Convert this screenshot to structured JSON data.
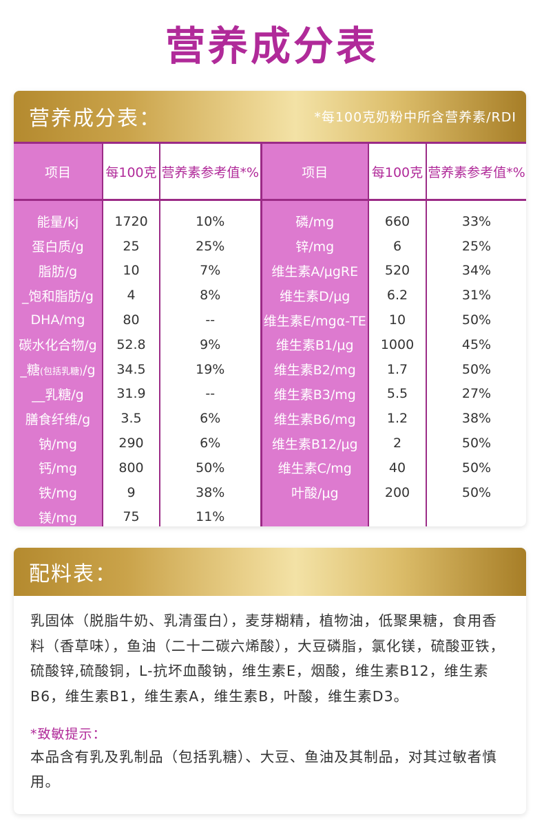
{
  "page_title": "营养成分表",
  "nutrition": {
    "header_title": "营养成分表：",
    "header_note": "*每100克奶粉中所含营养素/RDI",
    "columns": {
      "item": "项目",
      "per100g": "每100克",
      "rdi": "营养素参考值*%"
    },
    "left_rows": [
      {
        "item": "能量/kj",
        "value": "1720",
        "rdi": "10%"
      },
      {
        "item": "蛋白质/g",
        "value": "25",
        "rdi": "25%"
      },
      {
        "item": "脂肪/g",
        "value": "10",
        "rdi": "7%"
      },
      {
        "item": "_饱和脂肪/g",
        "value": "4",
        "rdi": "8%"
      },
      {
        "item": "DHA/mg",
        "value": "80",
        "rdi": "--"
      },
      {
        "item": "碳水化合物/g",
        "value": "52.8",
        "rdi": "9%"
      },
      {
        "item_prefix": "_糖",
        "item_small": "(包括乳糖)",
        "item_suffix": "/g",
        "value": "34.5",
        "rdi": "19%"
      },
      {
        "item": "__乳糖/g",
        "value": "31.9",
        "rdi": "--"
      },
      {
        "item": "膳食纤维/g",
        "value": "3.5",
        "rdi": "6%"
      },
      {
        "item": "钠/mg",
        "value": "290",
        "rdi": "6%"
      },
      {
        "item": "钙/mg",
        "value": "800",
        "rdi": "50%"
      },
      {
        "item": "铁/mg",
        "value": "9",
        "rdi": "38%"
      },
      {
        "item": "镁/mg",
        "value": "75",
        "rdi": "11%"
      }
    ],
    "right_rows": [
      {
        "item": "磷/mg",
        "value": "660",
        "rdi": "33%"
      },
      {
        "item": "锌/mg",
        "value": "6",
        "rdi": "25%"
      },
      {
        "item": "维生素A/μgRE",
        "value": "520",
        "rdi": "34%"
      },
      {
        "item": "维生素D/μg",
        "value": "6.2",
        "rdi": "31%"
      },
      {
        "item": "维生素E/mgα-TE",
        "value": "10",
        "rdi": "50%"
      },
      {
        "item": "维生素B1/μg",
        "value": "1000",
        "rdi": "45%"
      },
      {
        "item": "维生素B2/mg",
        "value": "1.7",
        "rdi": "50%"
      },
      {
        "item": "维生素B3/mg",
        "value": "5.5",
        "rdi": "27%"
      },
      {
        "item": "维生素B6/mg",
        "value": "1.2",
        "rdi": "38%"
      },
      {
        "item": "维生素B12/μg",
        "value": "2",
        "rdi": "50%"
      },
      {
        "item": "维生素C/mg",
        "value": "40",
        "rdi": "50%"
      },
      {
        "item": "叶酸/μg",
        "value": "200",
        "rdi": "50%"
      },
      {
        "item": "",
        "value": "",
        "rdi": ""
      }
    ]
  },
  "ingredients": {
    "header_title": "配料表：",
    "text": "乳固体（脱脂牛奶、乳清蛋白），麦芽糊精，植物油，低聚果糖，食用香料（香草味），鱼油（二十二碳六烯酸），大豆磷脂，氯化镁，硫酸亚铁，硫酸锌,硫酸铜，L-抗坏血酸钠，维生素E，烟酸，维生素B12，维生素B6，维生素B1，维生素A，维生素B，叶酸，维生素D3。",
    "allergy_title": "*致敏提示：",
    "allergy_text": "本品含有乳及乳制品（包括乳糖）、大豆、鱼油及其制品，对其过敏者慎用。"
  },
  "colors": {
    "brand_magenta": "#b02a99",
    "item_column_pink": "#dd7acf",
    "border_purple": "#9b2b86",
    "header_gold": "#d4af5a"
  }
}
